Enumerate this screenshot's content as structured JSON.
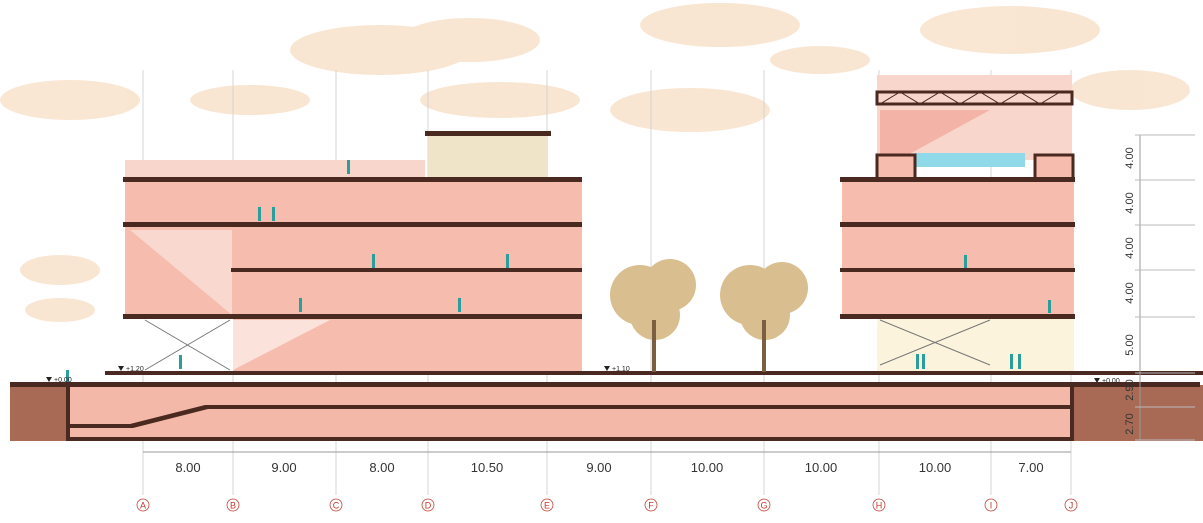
{
  "grid_spans": [
    "8.00",
    "9.00",
    "8.00",
    "10.50",
    "9.00",
    "10.00",
    "10.00",
    "10.00",
    "7.00"
  ],
  "grid_axes": [
    "A",
    "B",
    "C",
    "D",
    "E",
    "F",
    "G",
    "H",
    "I",
    "J"
  ],
  "level_marks": [
    "+0.00",
    "+1.20",
    "+1.10",
    "+0.00"
  ],
  "storey_heights": [
    "4.00",
    "4.00",
    "4.00",
    "4.00",
    "5.00",
    "2.90",
    "2.70"
  ]
}
